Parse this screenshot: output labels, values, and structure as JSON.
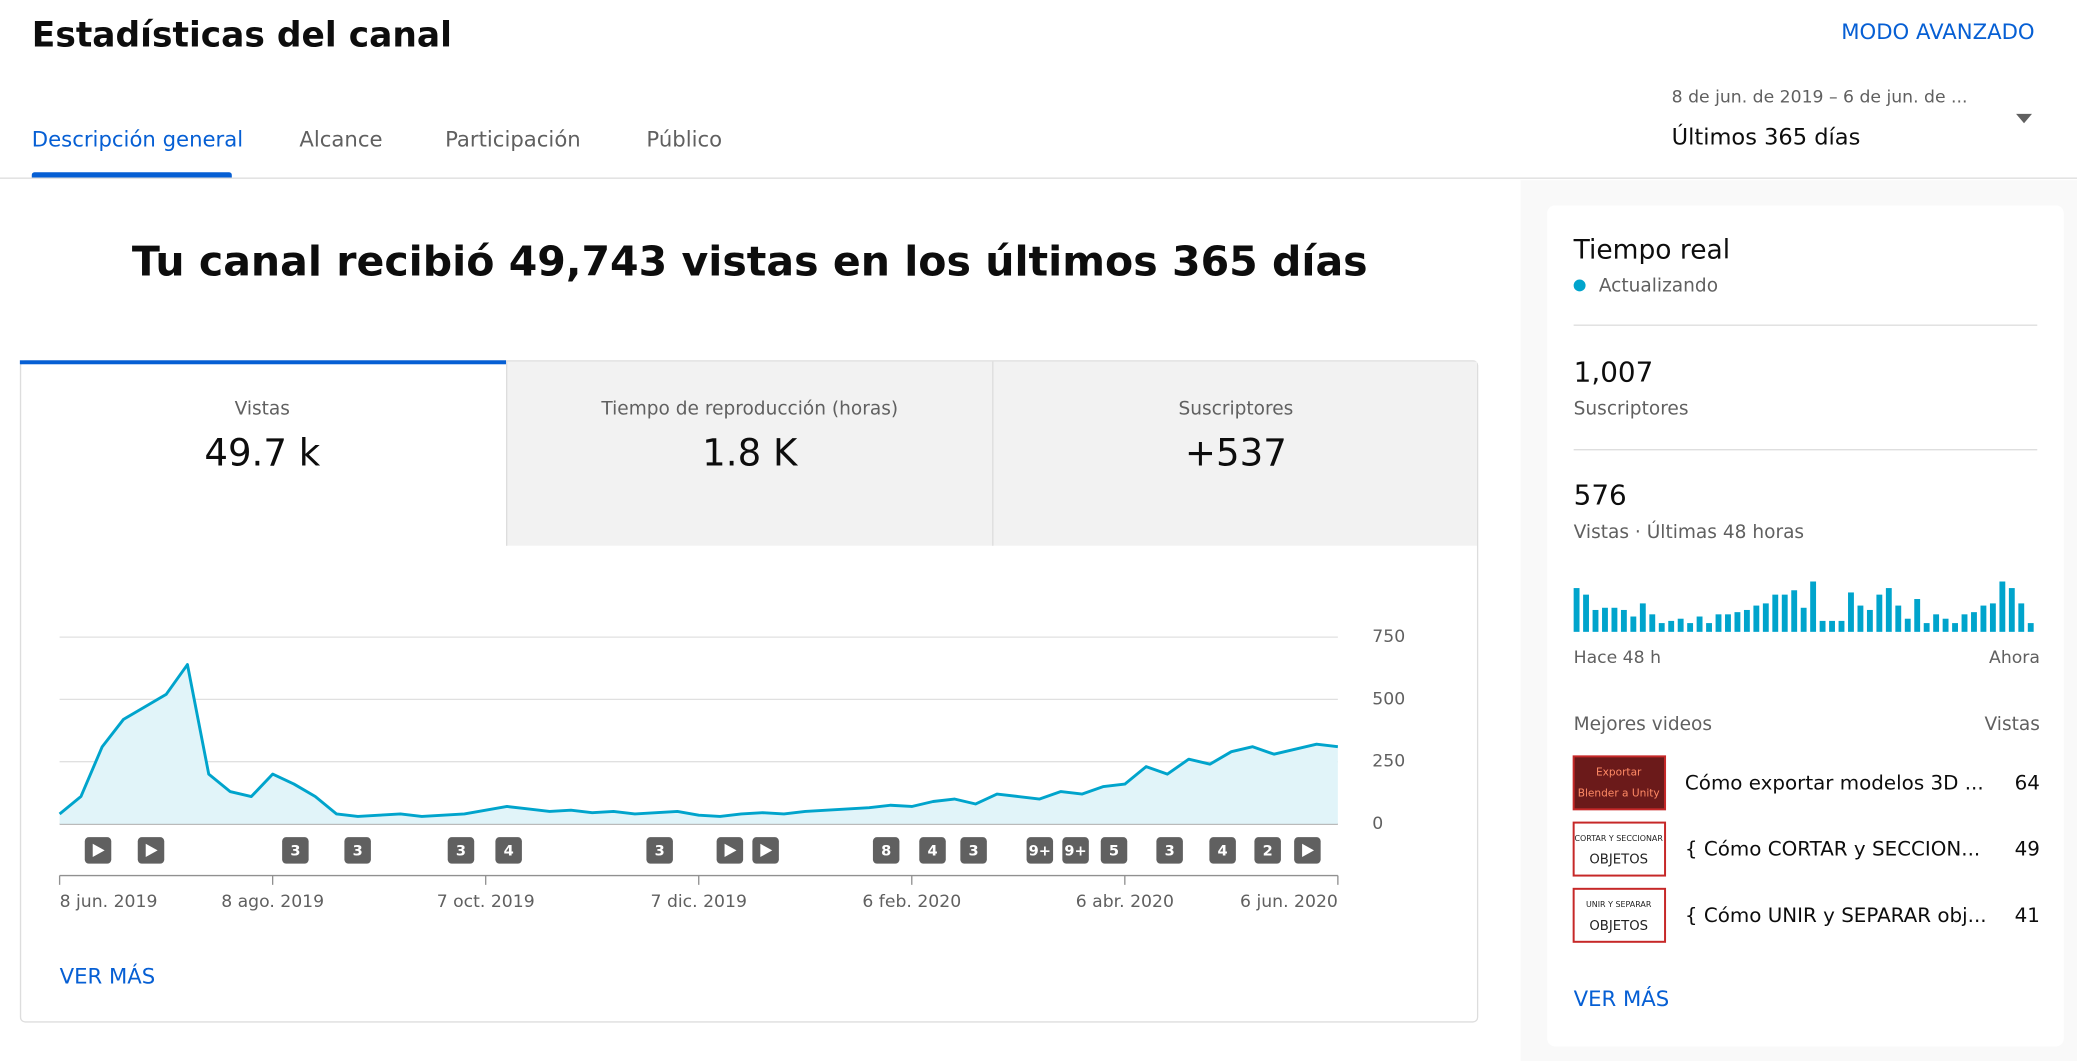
{
  "header": {
    "title": "Estadísticas del canal",
    "advanced_mode": "MODO AVANZADO",
    "tabs": [
      "Descripción general",
      "Alcance",
      "Participación",
      "Público"
    ],
    "date_range": "8 de jun. de 2019 – 6 de jun. de ...",
    "period": "Últimos 365 días"
  },
  "headline": "Tu canal recibió 49,743 vistas en los últimos 365 días",
  "metrics": [
    {
      "label": "Vistas",
      "value": "49.7 k"
    },
    {
      "label": "Tiempo de reproducción (horas)",
      "value": "1.8 K"
    },
    {
      "label": "Suscriptores",
      "value": "+537"
    }
  ],
  "chart_data": {
    "type": "line",
    "color": "#00a4cc",
    "categories": [
      "8 jun. 2019",
      null,
      null,
      null,
      null,
      null,
      null,
      null,
      null,
      null,
      "8 ago. 2019",
      null,
      null,
      null,
      null,
      null,
      null,
      null,
      null,
      null,
      "7 oct. 2019",
      null,
      null,
      null,
      null,
      null,
      null,
      null,
      null,
      null,
      "7 dic. 2019",
      null,
      null,
      null,
      null,
      null,
      null,
      null,
      null,
      null,
      "6 feb. 2020",
      null,
      null,
      null,
      null,
      null,
      null,
      null,
      null,
      null,
      "6 abr. 2020",
      null,
      null,
      null,
      null,
      null,
      null,
      null,
      null,
      null,
      "6 jun. 2020"
    ],
    "values": [
      40,
      110,
      310,
      420,
      470,
      520,
      640,
      200,
      130,
      110,
      200,
      160,
      110,
      40,
      30,
      35,
      40,
      30,
      35,
      40,
      55,
      70,
      60,
      50,
      55,
      45,
      50,
      40,
      45,
      50,
      35,
      30,
      40,
      45,
      40,
      50,
      55,
      60,
      65,
      75,
      70,
      90,
      100,
      80,
      120,
      110,
      100,
      130,
      120,
      150,
      160,
      230,
      200,
      260,
      240,
      290,
      310,
      280,
      300,
      320,
      310
    ],
    "ylim": [
      0,
      750
    ],
    "yticks": [
      0,
      250,
      500,
      750
    ],
    "grid": true,
    "markers": [
      "3",
      "3",
      "3",
      "4",
      "3",
      "8",
      "4",
      "3",
      "9+",
      "9+",
      "5",
      "3",
      "4",
      "2"
    ]
  },
  "overview_more": "VER MÁS",
  "realtime": {
    "title": "Tiempo real",
    "status": "Actualizando",
    "subscribers": "1,007",
    "subscribers_label": "Suscriptores",
    "views": "576",
    "views_label": "Vistas · Últimas 48 horas",
    "bars": [
      20,
      17,
      10,
      11,
      11,
      10,
      7,
      13,
      8,
      4,
      5,
      6,
      4,
      7,
      4,
      8,
      8,
      9,
      10,
      12,
      13,
      17,
      17,
      19,
      11,
      23,
      5,
      5,
      5,
      18,
      12,
      10,
      17,
      20,
      12,
      6,
      15,
      4,
      8,
      6,
      4,
      8,
      9,
      12,
      13,
      23,
      20,
      13,
      4
    ],
    "start_label": "Hace 48 h",
    "end_label": "Ahora",
    "top_videos_label": "Mejores videos",
    "views_column": "Vistas",
    "videos": [
      {
        "thumb": [
          "Exportar",
          "Blender a Unity"
        ],
        "title": "Cómo exportar modelos 3D ...",
        "views": 64
      },
      {
        "thumb": [
          "CORTAR Y SECCIONAR",
          "OBJETOS"
        ],
        "title": "{ Cómo CORTAR y SECCION...",
        "views": 49
      },
      {
        "thumb": [
          "UNIR Y SEPARAR",
          "OBJETOS"
        ],
        "title": "{ Cómo UNIR y SEPARAR obj...",
        "views": 41
      }
    ],
    "more": "VER MÁS"
  }
}
